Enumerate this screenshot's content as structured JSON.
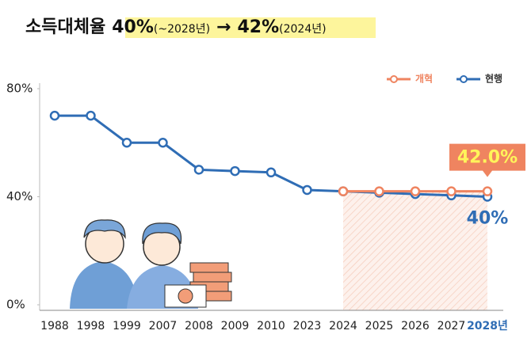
{
  "chart_data": {
    "type": "line",
    "title": [
      "소득대체율",
      "40%",
      "(~2028년)",
      "→",
      "42%",
      "(2024년)"
    ],
    "categories": [
      "1988",
      "1998",
      "1999",
      "2007",
      "2008",
      "2009",
      "2010",
      "2023",
      "2024",
      "2025",
      "2026",
      "2027",
      "2028년"
    ],
    "series": [
      {
        "name": "개혁",
        "color": "#ef8460",
        "values": [
          null,
          null,
          null,
          null,
          null,
          null,
          null,
          null,
          42,
          42,
          42,
          42,
          42
        ],
        "value_labels": {
          "12": "42.0%"
        }
      },
      {
        "name": "현행",
        "color": "#2f6db5",
        "values": [
          70,
          70,
          60,
          60,
          50,
          49.5,
          49,
          42.5,
          42,
          41.5,
          41,
          40.5,
          40
        ],
        "value_labels": {
          "12": "40%"
        }
      }
    ],
    "ylim": [
      0,
      80
    ],
    "yticks": [
      {
        "value": 0,
        "label": "0%"
      },
      {
        "value": 40,
        "label": "40%"
      },
      {
        "value": 80,
        "label": "80%"
      }
    ],
    "legend": "top-right"
  }
}
